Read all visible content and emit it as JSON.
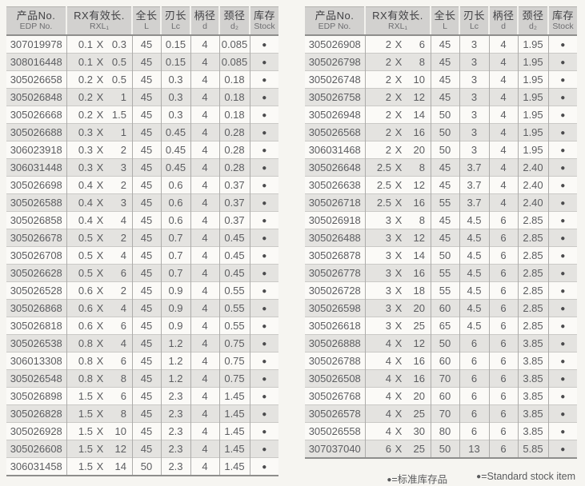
{
  "columns": [
    {
      "cn": "产品No.",
      "sub": "EDP No."
    },
    {
      "cn": "RX有效长.",
      "sub": "RXL₁"
    },
    {
      "cn": "全长",
      "sub": "L"
    },
    {
      "cn": "刃长",
      "sub": "Lc"
    },
    {
      "cn": "柄径",
      "sub": "d"
    },
    {
      "cn": "颈径",
      "sub": "d₂"
    },
    {
      "cn": "库存",
      "sub": "Stock"
    }
  ],
  "x_symbol": "X",
  "stock_symbol": "●",
  "tables": [
    {
      "rows": [
        [
          "307019978",
          "0.1",
          "0.3",
          "45",
          "0.15",
          "4",
          "0.085",
          "●"
        ],
        [
          "308016448",
          "0.1",
          "0.5",
          "45",
          "0.15",
          "4",
          "0.085",
          "●"
        ],
        [
          "305026658",
          "0.2",
          "0.5",
          "45",
          "0.3",
          "4",
          "0.18",
          "●"
        ],
        [
          "305026848",
          "0.2",
          "1",
          "45",
          "0.3",
          "4",
          "0.18",
          "●"
        ],
        [
          "305026668",
          "0.2",
          "1.5",
          "45",
          "0.3",
          "4",
          "0.18",
          "●"
        ],
        [
          "305026688",
          "0.3",
          "1",
          "45",
          "0.45",
          "4",
          "0.28",
          "●"
        ],
        [
          "306023918",
          "0.3",
          "2",
          "45",
          "0.45",
          "4",
          "0.28",
          "●"
        ],
        [
          "306031448",
          "0.3",
          "3",
          "45",
          "0.45",
          "4",
          "0.28",
          "●"
        ],
        [
          "305026698",
          "0.4",
          "2",
          "45",
          "0.6",
          "4",
          "0.37",
          "●"
        ],
        [
          "305026588",
          "0.4",
          "3",
          "45",
          "0.6",
          "4",
          "0.37",
          "●"
        ],
        [
          "305026858",
          "0.4",
          "4",
          "45",
          "0.6",
          "4",
          "0.37",
          "●"
        ],
        [
          "305026678",
          "0.5",
          "2",
          "45",
          "0.7",
          "4",
          "0.45",
          "●"
        ],
        [
          "305026708",
          "0.5",
          "4",
          "45",
          "0.7",
          "4",
          "0.45",
          "●"
        ],
        [
          "305026628",
          "0.5",
          "6",
          "45",
          "0.7",
          "4",
          "0.45",
          "●"
        ],
        [
          "305026528",
          "0.6",
          "2",
          "45",
          "0.9",
          "4",
          "0.55",
          "●"
        ],
        [
          "305026868",
          "0.6",
          "4",
          "45",
          "0.9",
          "4",
          "0.55",
          "●"
        ],
        [
          "305026818",
          "0.6",
          "6",
          "45",
          "0.9",
          "4",
          "0.55",
          "●"
        ],
        [
          "305026538",
          "0.8",
          "4",
          "45",
          "1.2",
          "4",
          "0.75",
          "●"
        ],
        [
          "306013308",
          "0.8",
          "6",
          "45",
          "1.2",
          "4",
          "0.75",
          "●"
        ],
        [
          "305026548",
          "0.8",
          "8",
          "45",
          "1.2",
          "4",
          "0.75",
          "●"
        ],
        [
          "305026898",
          "1.5",
          "6",
          "45",
          "2.3",
          "4",
          "1.45",
          "●"
        ],
        [
          "305026828",
          "1.5",
          "8",
          "45",
          "2.3",
          "4",
          "1.45",
          "●"
        ],
        [
          "305026928",
          "1.5",
          "10",
          "45",
          "2.3",
          "4",
          "1.45",
          "●"
        ],
        [
          "305026608",
          "1.5",
          "12",
          "45",
          "2.3",
          "4",
          "1.45",
          "●"
        ],
        [
          "306031458",
          "1.5",
          "14",
          "50",
          "2.3",
          "4",
          "1.45",
          "●"
        ]
      ]
    },
    {
      "rows": [
        [
          "305026908",
          "2",
          "6",
          "45",
          "3",
          "4",
          "1.95",
          "●"
        ],
        [
          "305026798",
          "2",
          "8",
          "45",
          "3",
          "4",
          "1.95",
          "●"
        ],
        [
          "305026748",
          "2",
          "10",
          "45",
          "3",
          "4",
          "1.95",
          "●"
        ],
        [
          "305026758",
          "2",
          "12",
          "45",
          "3",
          "4",
          "1.95",
          "●"
        ],
        [
          "305026948",
          "2",
          "14",
          "50",
          "3",
          "4",
          "1.95",
          "●"
        ],
        [
          "305026568",
          "2",
          "16",
          "50",
          "3",
          "4",
          "1.95",
          "●"
        ],
        [
          "306031468",
          "2",
          "20",
          "50",
          "3",
          "4",
          "1.95",
          "●"
        ],
        [
          "305026648",
          "2.5",
          "8",
          "45",
          "3.7",
          "4",
          "2.40",
          "●"
        ],
        [
          "305026638",
          "2.5",
          "12",
          "45",
          "3.7",
          "4",
          "2.40",
          "●"
        ],
        [
          "305026718",
          "2.5",
          "16",
          "55",
          "3.7",
          "4",
          "2.40",
          "●"
        ],
        [
          "305026918",
          "3",
          "8",
          "45",
          "4.5",
          "6",
          "2.85",
          "●"
        ],
        [
          "305026488",
          "3",
          "12",
          "45",
          "4.5",
          "6",
          "2.85",
          "●"
        ],
        [
          "305026878",
          "3",
          "14",
          "50",
          "4.5",
          "6",
          "2.85",
          "●"
        ],
        [
          "305026778",
          "3",
          "16",
          "55",
          "4.5",
          "6",
          "2.85",
          "●"
        ],
        [
          "305026728",
          "3",
          "18",
          "55",
          "4.5",
          "6",
          "2.85",
          "●"
        ],
        [
          "305026598",
          "3",
          "20",
          "60",
          "4.5",
          "6",
          "2.85",
          "●"
        ],
        [
          "305026618",
          "3",
          "25",
          "65",
          "4.5",
          "6",
          "2.85",
          "●"
        ],
        [
          "305026888",
          "4",
          "12",
          "50",
          "6",
          "6",
          "3.85",
          "●"
        ],
        [
          "305026788",
          "4",
          "16",
          "60",
          "6",
          "6",
          "3.85",
          "●"
        ],
        [
          "305026508",
          "4",
          "16",
          "70",
          "6",
          "6",
          "3.85",
          "●"
        ],
        [
          "305026768",
          "4",
          "20",
          "60",
          "6",
          "6",
          "3.85",
          "●"
        ],
        [
          "305026578",
          "4",
          "25",
          "70",
          "6",
          "6",
          "3.85",
          "●"
        ],
        [
          "305026558",
          "4",
          "30",
          "80",
          "6",
          "6",
          "3.85",
          "●"
        ],
        [
          "307037040",
          "6",
          "25",
          "50",
          "13",
          "6",
          "5.85",
          "●"
        ]
      ]
    }
  ],
  "legend": {
    "cn_dot": "●",
    "cn_text": "=标准库存品",
    "en_dot": "●",
    "en_text": "=Standard stock item"
  },
  "colors": {
    "header_bg": "#d2d1cf",
    "row_alt_bg": "#e4e3e0",
    "page_bg": "#f6f5f1",
    "text": "#5c5d60",
    "stock_dot": "#4b4b4d"
  }
}
